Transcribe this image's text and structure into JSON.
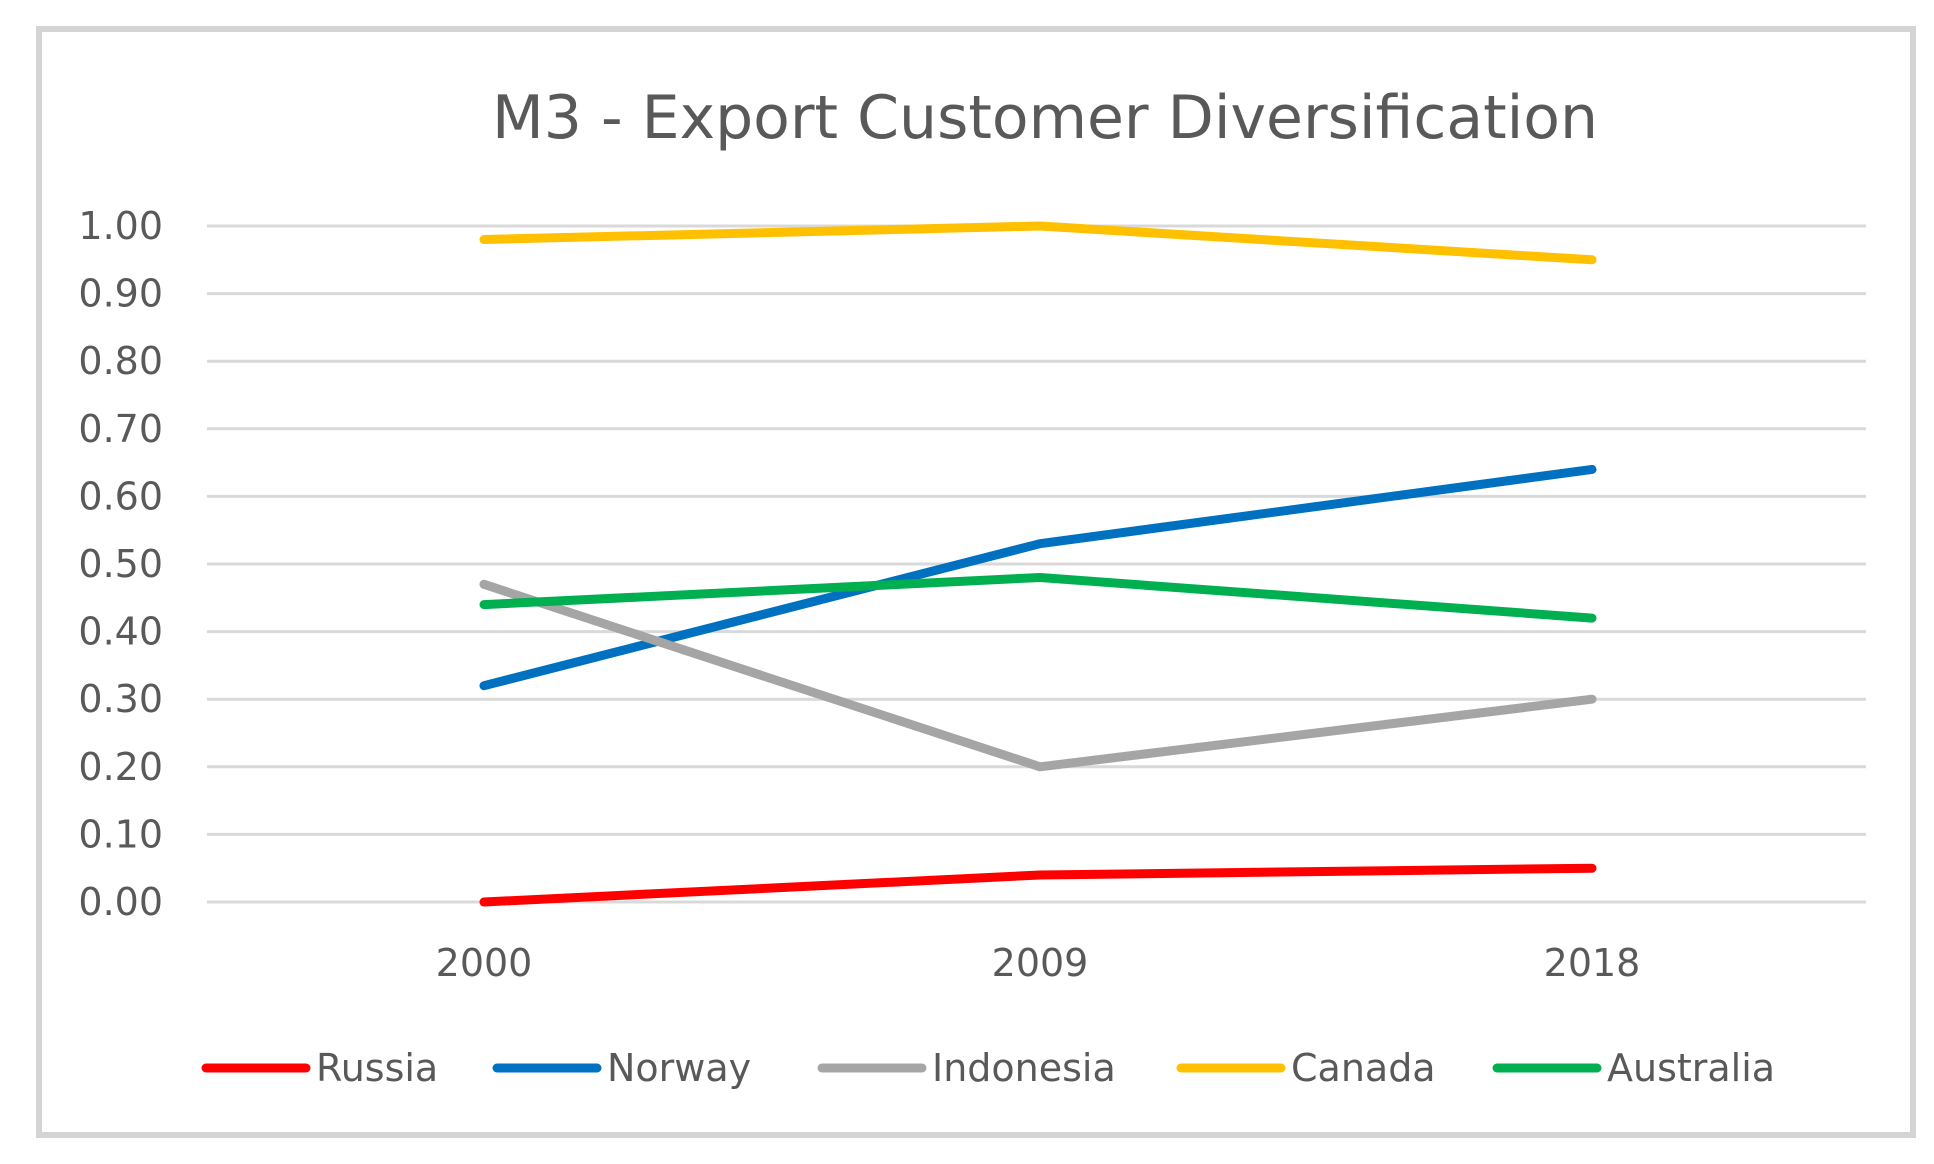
{
  "chart_data": {
    "type": "line",
    "title": "M3 - Export Customer Diversification",
    "xlabel": "",
    "ylabel": "",
    "categories": [
      "2000",
      "2009",
      "2018"
    ],
    "ylim": [
      0,
      1
    ],
    "yticks": [
      "0.00",
      "0.10",
      "0.20",
      "0.30",
      "0.40",
      "0.50",
      "0.60",
      "0.70",
      "0.80",
      "0.90",
      "1.00"
    ],
    "grid": true,
    "legend_position": "bottom",
    "series": [
      {
        "name": "Russia",
        "color": "#ff0000",
        "values": [
          0.0,
          0.04,
          0.05
        ]
      },
      {
        "name": "Norway",
        "color": "#0070c0",
        "values": [
          0.32,
          0.53,
          0.64
        ]
      },
      {
        "name": "Indonesia",
        "color": "#a5a5a5",
        "values": [
          0.47,
          0.2,
          0.3
        ]
      },
      {
        "name": "Canada",
        "color": "#ffc000",
        "values": [
          0.98,
          1.0,
          0.95
        ]
      },
      {
        "name": "Australia",
        "color": "#00b050",
        "values": [
          0.44,
          0.48,
          0.42
        ]
      }
    ]
  }
}
